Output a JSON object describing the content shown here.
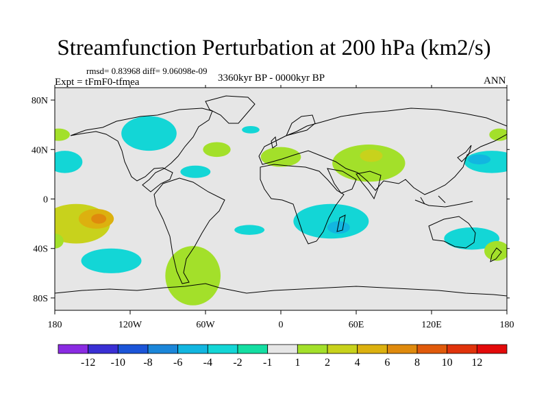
{
  "title": "Streamfunction Perturbation at 200 hPa (km2/s)",
  "stats": "rmsd= 0.83968 diff= 9.06098e-09",
  "experiment": "Expt = tFmF0-tfmea",
  "period": "3360kyr BP - 0000kyr BP",
  "season": "ANN",
  "chart_data": {
    "type": "contour-map",
    "title": "Streamfunction Perturbation at 200 hPa (km2/s)",
    "projection": "cylindrical-equidistant",
    "lon_range": [
      -180,
      180
    ],
    "lat_range": [
      -90,
      90
    ],
    "x_ticks": [
      {
        "value": -180,
        "label": "180"
      },
      {
        "value": -120,
        "label": "120W"
      },
      {
        "value": -60,
        "label": "60W"
      },
      {
        "value": 0,
        "label": "0"
      },
      {
        "value": 60,
        "label": "60E"
      },
      {
        "value": 120,
        "label": "120E"
      },
      {
        "value": 180,
        "label": "180"
      }
    ],
    "y_ticks": [
      {
        "value": 80,
        "label": "80N"
      },
      {
        "value": 40,
        "label": "40N"
      },
      {
        "value": 0,
        "label": "0"
      },
      {
        "value": -40,
        "label": "40S"
      },
      {
        "value": -80,
        "label": "80S"
      }
    ],
    "colorbar": {
      "labels": [
        "-12",
        "-10",
        "-8",
        "-6",
        "-4",
        "-2",
        "-1",
        "1",
        "2",
        "4",
        "6",
        "8",
        "10",
        "12"
      ],
      "colors": [
        "#8a2be2",
        "#3a2fd4",
        "#1c55d8",
        "#1b86d9",
        "#12b6e0",
        "#13d6d6",
        "#14dea2",
        "#e6e6e6",
        "#a3e02a",
        "#c8d21c",
        "#dcb10f",
        "#df8a0d",
        "#e05a0b",
        "#e0330b",
        "#e30a0a"
      ]
    },
    "anomalies": [
      {
        "lon": -163,
        "lat": -20,
        "rx": 27,
        "ry": 16,
        "level": "2"
      },
      {
        "lon": -147,
        "lat": -16,
        "rx": 14,
        "ry": 8,
        "level": "4"
      },
      {
        "lon": -145,
        "lat": -16,
        "rx": 6,
        "ry": 4,
        "level": "6"
      },
      {
        "lon": -135,
        "lat": -50,
        "rx": 24,
        "ry": 10,
        "level": "-2"
      },
      {
        "lon": -105,
        "lat": 53,
        "rx": 22,
        "ry": 14,
        "level": "-2"
      },
      {
        "lon": -177,
        "lat": 52,
        "rx": 9,
        "ry": 5,
        "level": "1"
      },
      {
        "lon": -172,
        "lat": 30,
        "rx": 14,
        "ry": 9,
        "level": "-2"
      },
      {
        "lon": -68,
        "lat": 22,
        "rx": 12,
        "ry": 5,
        "level": "-2"
      },
      {
        "lon": -51,
        "lat": 40,
        "rx": 11,
        "ry": 6,
        "level": "1"
      },
      {
        "lon": -24,
        "lat": 56,
        "rx": 7,
        "ry": 3,
        "level": "-2"
      },
      {
        "lon": -25,
        "lat": -25,
        "rx": 12,
        "ry": 4,
        "level": "-2"
      },
      {
        "lon": 0,
        "lat": 34,
        "rx": 16,
        "ry": 8,
        "level": "1"
      },
      {
        "lon": 70,
        "lat": 29,
        "rx": 29,
        "ry": 15,
        "level": "1"
      },
      {
        "lon": 72,
        "lat": 35,
        "rx": 9,
        "ry": 5,
        "level": "2"
      },
      {
        "lon": 40,
        "lat": -18,
        "rx": 30,
        "ry": 14,
        "level": "-2"
      },
      {
        "lon": 46,
        "lat": -23,
        "rx": 9,
        "ry": 5,
        "level": "-4"
      },
      {
        "lon": -70,
        "lat": -62,
        "rx": 22,
        "ry": 24,
        "level": "1"
      },
      {
        "lon": 152,
        "lat": -32,
        "rx": 22,
        "ry": 9,
        "level": "-2"
      },
      {
        "lon": 168,
        "lat": 30,
        "rx": 22,
        "ry": 9,
        "level": "-2"
      },
      {
        "lon": 158,
        "lat": 32,
        "rx": 9,
        "ry": 4,
        "level": "-4"
      },
      {
        "lon": 174,
        "lat": 52,
        "rx": 8,
        "ry": 5,
        "level": "1"
      },
      {
        "lon": 172,
        "lat": -42,
        "rx": 10,
        "ry": 8,
        "level": "1"
      },
      {
        "lon": -180,
        "lat": -34,
        "rx": 7,
        "ry": 6,
        "level": "1"
      }
    ]
  }
}
